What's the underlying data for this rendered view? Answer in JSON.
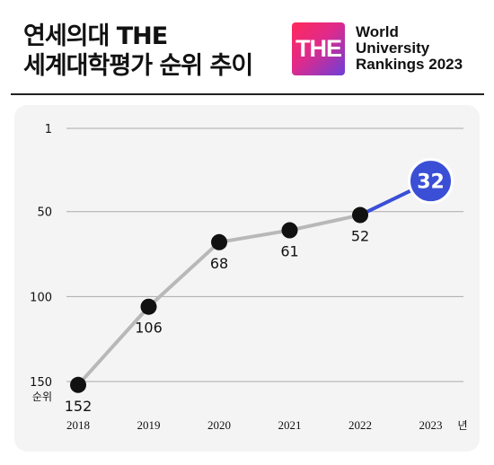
{
  "title": {
    "line1": "연세의대 THE",
    "line2": "세계대학평가 순위 추이"
  },
  "logo": {
    "text": "THE",
    "brand": [
      "World",
      "University",
      "Rankings 2023"
    ]
  },
  "colors": {
    "line": "#b8b8b8",
    "point": "#111111",
    "highlight": "#3a4fd6",
    "grid": "#aaaaaa"
  },
  "chart_data": {
    "type": "line",
    "x": [
      "2018",
      "2019",
      "2020",
      "2021",
      "2022",
      "2023"
    ],
    "x_unit": "년",
    "values": [
      152,
      106,
      68,
      61,
      52,
      32
    ],
    "y_ticks": [
      1,
      50,
      100,
      150
    ],
    "y_unit": "순위",
    "ylim": [
      1,
      150
    ],
    "y_inverted": true,
    "highlight_index": 5,
    "grid": true
  }
}
